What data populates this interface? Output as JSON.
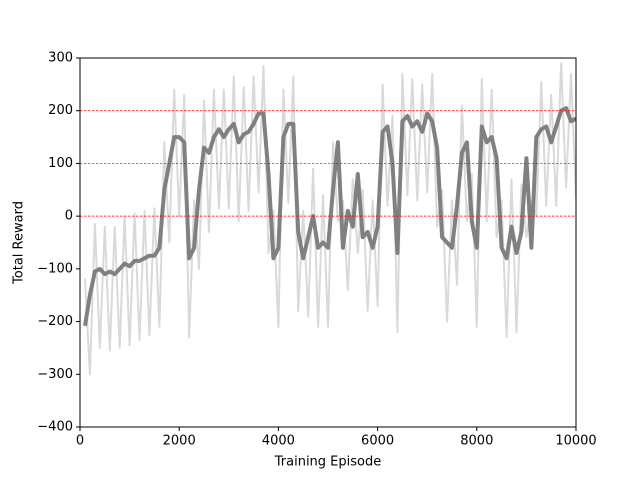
{
  "chart_data": {
    "type": "line",
    "x_label": "Training Episode",
    "y_label": "Total Reward",
    "x": [
      100,
      200,
      300,
      400,
      500,
      600,
      700,
      800,
      900,
      1000,
      1100,
      1200,
      1300,
      1400,
      1500,
      1600,
      1700,
      1800,
      1900,
      2000,
      2100,
      2200,
      2300,
      2400,
      2500,
      2600,
      2700,
      2800,
      2900,
      3000,
      3100,
      3200,
      3300,
      3400,
      3500,
      3600,
      3700,
      3800,
      3900,
      4000,
      4100,
      4200,
      4300,
      4400,
      4500,
      4600,
      4700,
      4800,
      4900,
      5000,
      5100,
      5200,
      5300,
      5400,
      5500,
      5600,
      5700,
      5800,
      5900,
      6000,
      6100,
      6200,
      6300,
      6400,
      6500,
      6600,
      6700,
      6800,
      6900,
      7000,
      7100,
      7200,
      7300,
      7400,
      7500,
      7600,
      7700,
      7800,
      7900,
      8000,
      8100,
      8200,
      8300,
      8400,
      8500,
      8600,
      8700,
      8800,
      8900,
      9000,
      9100,
      9200,
      9300,
      9400,
      9500,
      9600,
      9700,
      9800,
      9900,
      10000
    ],
    "series": [
      {
        "color": "#d9d9d9",
        "width": 2,
        "values": [
          -118,
          -300,
          -15,
          -250,
          -20,
          -255,
          -20,
          -250,
          0,
          -245,
          5,
          -235,
          10,
          -225,
          15,
          -210,
          140,
          -50,
          240,
          0,
          230,
          -230,
          30,
          -100,
          220,
          -30,
          240,
          15,
          240,
          15,
          265,
          -10,
          245,
          10,
          265,
          45,
          285,
          -70,
          10,
          -210,
          240,
          25,
          265,
          -180,
          10,
          -190,
          90,
          -210,
          40,
          -210,
          140,
          -10,
          30,
          -140,
          70,
          -70,
          50,
          -180,
          30,
          -170,
          250,
          20,
          190,
          -220,
          270,
          40,
          260,
          30,
          250,
          45,
          270,
          -20,
          50,
          -200,
          30,
          -130,
          210,
          -10,
          80,
          -210,
          260,
          -10,
          240,
          -40,
          30,
          -230,
          70,
          -220,
          60,
          -40,
          30,
          0,
          255,
          20,
          230,
          20,
          290,
          55,
          270,
          35
        ]
      },
      {
        "color": "#808080",
        "width": 4,
        "values": [
          -208,
          -150,
          -105,
          -100,
          -110,
          -105,
          -110,
          -100,
          -90,
          -95,
          -85,
          -85,
          -80,
          -75,
          -75,
          -60,
          50,
          100,
          150,
          150,
          140,
          -80,
          -60,
          50,
          130,
          120,
          150,
          165,
          150,
          165,
          175,
          140,
          155,
          160,
          175,
          195,
          195,
          80,
          -80,
          -60,
          150,
          175,
          175,
          -30,
          -80,
          -40,
          0,
          -60,
          -50,
          -60,
          50,
          140,
          -60,
          10,
          -20,
          80,
          -40,
          -30,
          -60,
          -20,
          160,
          170,
          100,
          -70,
          180,
          190,
          170,
          180,
          160,
          195,
          180,
          130,
          -40,
          -50,
          -60,
          20,
          120,
          140,
          -10,
          -60,
          170,
          140,
          150,
          110,
          -60,
          -80,
          -20,
          -70,
          -30,
          110,
          -60,
          150,
          165,
          170,
          140,
          170,
          200,
          205,
          180,
          185
        ]
      }
    ],
    "hlines": [
      0,
      100,
      200
    ],
    "hline_color": "#ff0000",
    "xlim": [
      0,
      10000
    ],
    "xticks": [
      0,
      2000,
      4000,
      6000,
      8000,
      10000
    ],
    "ylim": [
      -400,
      300
    ],
    "yticks": [
      {
        "value": -400,
        "label": "−400"
      },
      {
        "value": -300,
        "label": "−300"
      },
      {
        "value": -200,
        "label": "−200"
      },
      {
        "value": -100,
        "label": "−100"
      },
      0,
      100,
      200,
      300
    ]
  }
}
